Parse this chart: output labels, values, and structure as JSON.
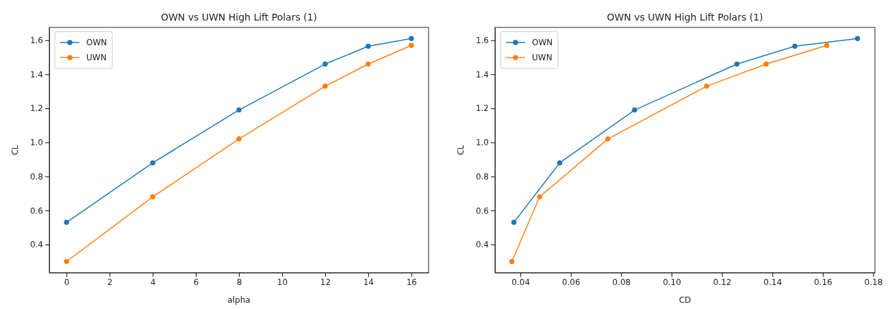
{
  "chart_data": [
    {
      "type": "line",
      "title": "OWN vs UWN High Lift Polars (1)",
      "xlabel": "alpha",
      "ylabel": "CL",
      "marker": "circle",
      "legend": "top left",
      "grid": false,
      "xlim": [
        -0.8,
        16.8
      ],
      "xticks": [
        0,
        2,
        4,
        6,
        8,
        10,
        12,
        14,
        16
      ],
      "ylim": [
        0.2345,
        1.6755
      ],
      "yticks": [
        0.4,
        0.6,
        0.8,
        {
          "value": 1,
          "label": "1.0"
        },
        1.2,
        1.4,
        1.6
      ],
      "series": [
        {
          "name": "OWN",
          "color": "#1f77b4",
          "x": [
            0,
            4,
            8,
            12,
            14,
            16
          ],
          "values": [
            0.53,
            0.88,
            1.19,
            1.46,
            1.565,
            1.61
          ]
        },
        {
          "name": "UWN",
          "color": "#ff7f0e",
          "x": [
            0,
            4,
            8,
            12,
            14,
            16
          ],
          "values": [
            0.3,
            0.68,
            1.02,
            1.33,
            1.46,
            1.57
          ]
        }
      ]
    },
    {
      "type": "line",
      "title": "OWN vs UWN High Lift Polars (1)",
      "xlabel": "CD",
      "ylabel": "CL",
      "marker": "circle",
      "legend": "top left",
      "grid": false,
      "xlim": [
        0.0299,
        0.1807
      ],
      "xticks": [
        0.04,
        0.06,
        0.08,
        {
          "value": 0.1,
          "label": "0.10"
        },
        0.12,
        0.14,
        0.16,
        0.18
      ],
      "ylim": [
        0.2345,
        1.6755
      ],
      "yticks": [
        0.4,
        0.6,
        0.8,
        {
          "value": 1,
          "label": "1.0"
        },
        1.2,
        1.4,
        1.6
      ],
      "series": [
        {
          "name": "OWN",
          "color": "#1f77b4",
          "x": [
            0.0374,
            0.0556,
            0.0853,
            0.1259,
            0.1489,
            0.1738
          ],
          "values": [
            0.53,
            0.88,
            1.19,
            1.46,
            1.565,
            1.61
          ]
        },
        {
          "name": "UWN",
          "color": "#ff7f0e",
          "x": [
            0.0366,
            0.0476,
            0.0747,
            0.1139,
            0.1375,
            0.1616
          ],
          "values": [
            0.3,
            0.68,
            1.02,
            1.33,
            1.46,
            1.57
          ]
        }
      ]
    }
  ]
}
